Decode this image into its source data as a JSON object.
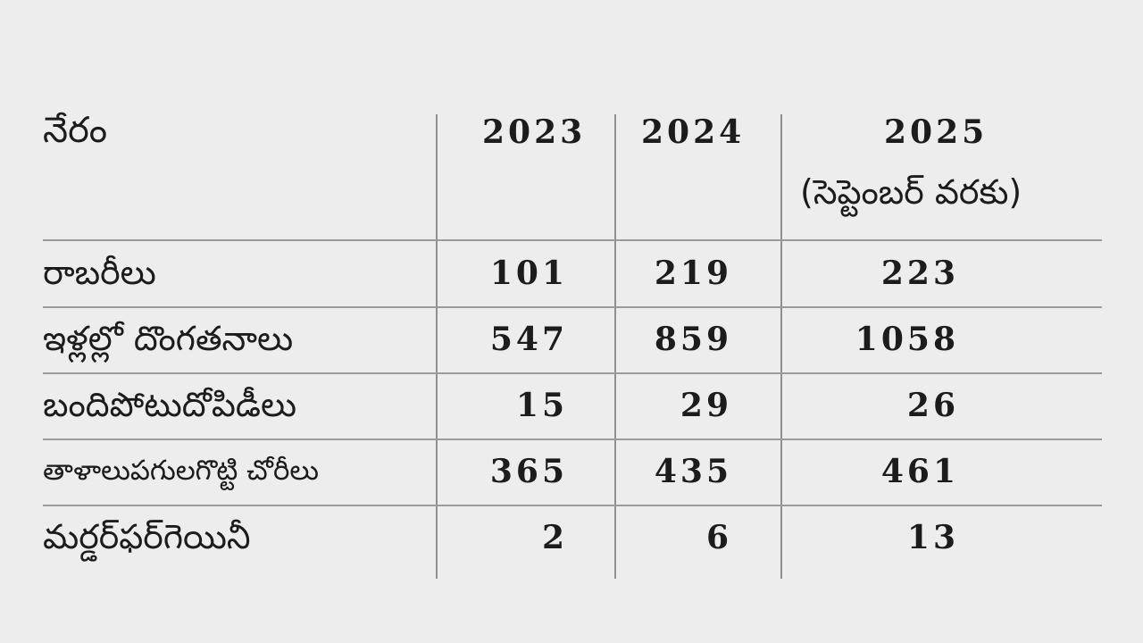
{
  "header": {
    "crime_label": "నేరం",
    "years": [
      "2023",
      "2024",
      "2025"
    ],
    "year3_note": "(సెప్టెంబర్ వరకు)"
  },
  "rows": [
    {
      "label": "రాబరీలు",
      "values": [
        "101",
        "219",
        "223"
      ]
    },
    {
      "label": "ఇళ్లల్లో దొంగతనాలు",
      "values": [
        "547",
        "859",
        "1058"
      ]
    },
    {
      "label": "బందిపోటుదోపిడీలు",
      "values": [
        "15",
        "29",
        "26"
      ]
    },
    {
      "label": "తాళాలుపగులగొట్టి చోరీలు",
      "values": [
        "365",
        "435",
        "461"
      ]
    },
    {
      "label": "మర్డర్‌ఫర్‌గెయినీ",
      "values": [
        "2",
        "6",
        "13"
      ]
    }
  ]
}
